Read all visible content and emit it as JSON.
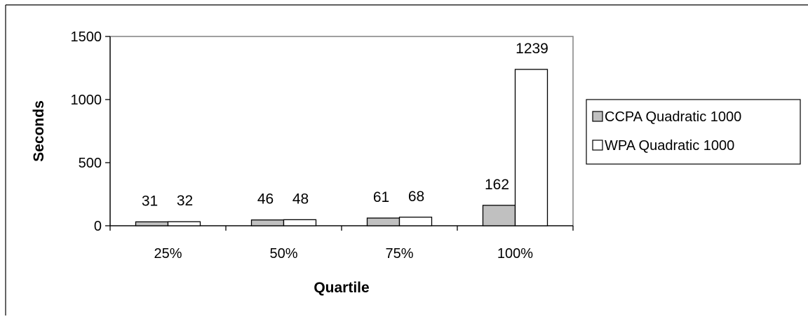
{
  "chart_data": {
    "type": "bar",
    "title": "",
    "xlabel": "Quartile",
    "ylabel": "Seconds",
    "categories": [
      "25%",
      "50%",
      "75%",
      "100%"
    ],
    "series": [
      {
        "name": "CCPA Quadratic 1000",
        "values": [
          31,
          46,
          61,
          162
        ],
        "color": "#c0c0c0"
      },
      {
        "name": "WPA Quadratic 1000",
        "values": [
          32,
          48,
          68,
          1239
        ],
        "color": "#ffffff"
      }
    ],
    "ylim": [
      0,
      1500
    ],
    "yticks": [
      "0",
      "500",
      "1000",
      "1500"
    ],
    "grid": false,
    "legend_position": "right",
    "plot_background": "#ffffff"
  }
}
